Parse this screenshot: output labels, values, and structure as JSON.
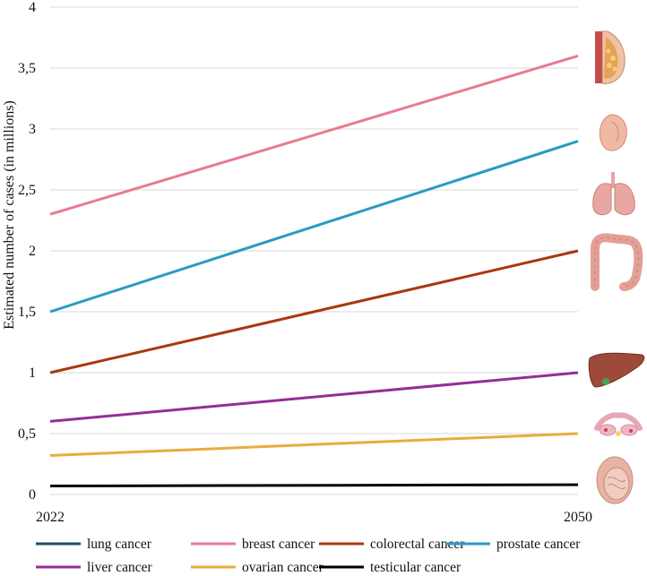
{
  "chart_data": {
    "type": "line",
    "title": "",
    "xlabel": "",
    "ylabel": "Estimated number of cases (in millions)",
    "x": [
      "2022",
      "2050"
    ],
    "ylim": [
      0,
      4
    ],
    "yticks": [
      "0",
      "0,5",
      "1",
      "1,5",
      "2",
      "2,5",
      "3",
      "3,5",
      "4"
    ],
    "grid": true,
    "legend_position": "bottom",
    "series": [
      {
        "name": "lung cancer",
        "color": "#1f4e66",
        "values": [
          null,
          null
        ]
      },
      {
        "name": "breast cancer",
        "color": "#e97a91",
        "values": [
          2.3,
          3.6
        ]
      },
      {
        "name": "colorectal cancer",
        "color": "#a8380f",
        "values": [
          1.0,
          2.0
        ]
      },
      {
        "name": "prostate cancer",
        "color": "#2b9ac4",
        "values": [
          1.5,
          2.9
        ]
      },
      {
        "name": "liver cancer",
        "color": "#952d98",
        "values": [
          0.6,
          1.0
        ]
      },
      {
        "name": "ovarian cancer",
        "color": "#e8ad3a",
        "values": [
          0.32,
          0.5
        ]
      },
      {
        "name": "testicular cancer",
        "color": "#000000",
        "values": [
          0.07,
          0.08
        ]
      }
    ],
    "icons": [
      "breast-icon",
      "prostate-icon",
      "lungs-icon",
      "colon-icon",
      "liver-icon",
      "ovaries-icon",
      "testis-icon"
    ]
  }
}
